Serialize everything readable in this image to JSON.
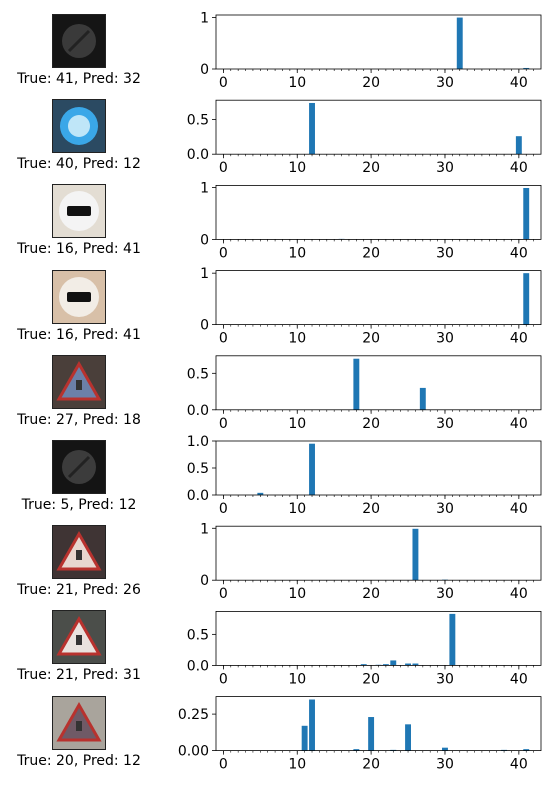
{
  "figure": {
    "rows": [
      {
        "caption": "True: 41, Pred: 32",
        "image": {
          "bg": "#151515",
          "sign": "#3a3a3a",
          "motif": "dark-round-sign"
        }
      },
      {
        "caption": "True: 40, Pred: 12",
        "image": {
          "bg": "#2b4a62",
          "sign": "#3aa7e8",
          "motif": "blue-round-sign"
        }
      },
      {
        "caption": "True: 16, Pred: 41",
        "image": {
          "bg": "#e3ddd3",
          "sign": "#f4f4f4",
          "motif": "truck-sign"
        }
      },
      {
        "caption": "True: 16, Pred: 41",
        "image": {
          "bg": "#d8c0a8",
          "sign": "#f2ede6",
          "motif": "truck-sign"
        }
      },
      {
        "caption": "True: 27, Pred: 18",
        "image": {
          "bg": "#4a3f3a",
          "sign": "#6c80a8",
          "motif": "triangle-sign"
        }
      },
      {
        "caption": "True: 5, Pred: 12",
        "image": {
          "bg": "#141414",
          "sign": "#3c3c3c",
          "motif": "dark-round-sign"
        }
      },
      {
        "caption": "True: 21, Pred: 26",
        "image": {
          "bg": "#3f3434",
          "sign": "#e8d6cf",
          "motif": "triangle-sign"
        }
      },
      {
        "caption": "True: 21, Pred: 31",
        "image": {
          "bg": "#4b4e4a",
          "sign": "#e9e2de",
          "motif": "triangle-sign"
        }
      },
      {
        "caption": "True: 20, Pred: 12",
        "image": {
          "bg": "#a9a49c",
          "sign": "#6f5a66",
          "motif": "triangle-sign"
        }
      }
    ]
  },
  "chart_data": [
    {
      "type": "bar",
      "x": [
        0,
        41,
        32
      ],
      "values": [
        0.0,
        0.02,
        1.0
      ],
      "xlim": [
        -1,
        43
      ],
      "ylim": [
        0,
        1.05
      ],
      "yticks": [
        0,
        1
      ],
      "xticks": [
        0,
        10,
        20,
        30,
        40
      ],
      "color": "#1f77b4"
    },
    {
      "type": "bar",
      "x": [
        12,
        40
      ],
      "values": [
        0.74,
        0.26
      ],
      "xlim": [
        -1,
        43
      ],
      "ylim": [
        0,
        0.78
      ],
      "yticks": [
        0.0,
        0.5
      ],
      "xticks": [
        0,
        10,
        20,
        30,
        40
      ],
      "color": "#1f77b4"
    },
    {
      "type": "bar",
      "x": [
        16,
        41
      ],
      "values": [
        0.01,
        0.99
      ],
      "xlim": [
        -1,
        43
      ],
      "ylim": [
        0,
        1.04
      ],
      "yticks": [
        0,
        1
      ],
      "xticks": [
        0,
        10,
        20,
        30,
        40
      ],
      "color": "#1f77b4"
    },
    {
      "type": "bar",
      "x": [
        41
      ],
      "values": [
        1.0
      ],
      "xlim": [
        -1,
        43
      ],
      "ylim": [
        0,
        1.05
      ],
      "yticks": [
        0,
        1
      ],
      "xticks": [
        0,
        10,
        20,
        30,
        40
      ],
      "color": "#1f77b4"
    },
    {
      "type": "bar",
      "x": [
        18,
        27
      ],
      "values": [
        0.7,
        0.3
      ],
      "xlim": [
        -1,
        43
      ],
      "ylim": [
        0,
        0.74
      ],
      "yticks": [
        0.0,
        0.5
      ],
      "xticks": [
        0,
        10,
        20,
        30,
        40
      ],
      "color": "#1f77b4"
    },
    {
      "type": "bar",
      "x": [
        5,
        12
      ],
      "values": [
        0.04,
        0.95
      ],
      "xlim": [
        -1,
        43
      ],
      "ylim": [
        0,
        1.0
      ],
      "yticks": [
        0.0,
        0.5,
        1.0
      ],
      "xticks": [
        0,
        10,
        20,
        30,
        40
      ],
      "color": "#1f77b4"
    },
    {
      "type": "bar",
      "x": [
        26,
        30
      ],
      "values": [
        0.99,
        0.01
      ],
      "xlim": [
        -1,
        43
      ],
      "ylim": [
        0,
        1.04
      ],
      "yticks": [
        0,
        1
      ],
      "xticks": [
        0,
        10,
        20,
        30,
        40
      ],
      "color": "#1f77b4"
    },
    {
      "type": "bar",
      "x": [
        19,
        21,
        22,
        23,
        25,
        26,
        31
      ],
      "values": [
        0.02,
        0.01,
        0.02,
        0.08,
        0.03,
        0.03,
        0.83
      ],
      "xlim": [
        -1,
        43
      ],
      "ylim": [
        0,
        0.87
      ],
      "yticks": [
        0.0,
        0.5
      ],
      "xticks": [
        0,
        10,
        20,
        30,
        40
      ],
      "color": "#1f77b4"
    },
    {
      "type": "bar",
      "x": [
        11,
        12,
        18,
        20,
        23,
        25,
        30,
        38,
        41
      ],
      "values": [
        0.17,
        0.35,
        0.01,
        0.23,
        0.005,
        0.18,
        0.02,
        0.005,
        0.01
      ],
      "xlim": [
        -1,
        43
      ],
      "ylim": [
        0,
        0.37
      ],
      "yticks": [
        0.0,
        0.25
      ],
      "xticks": [
        0,
        10,
        20,
        30,
        40
      ],
      "color": "#1f77b4"
    }
  ]
}
